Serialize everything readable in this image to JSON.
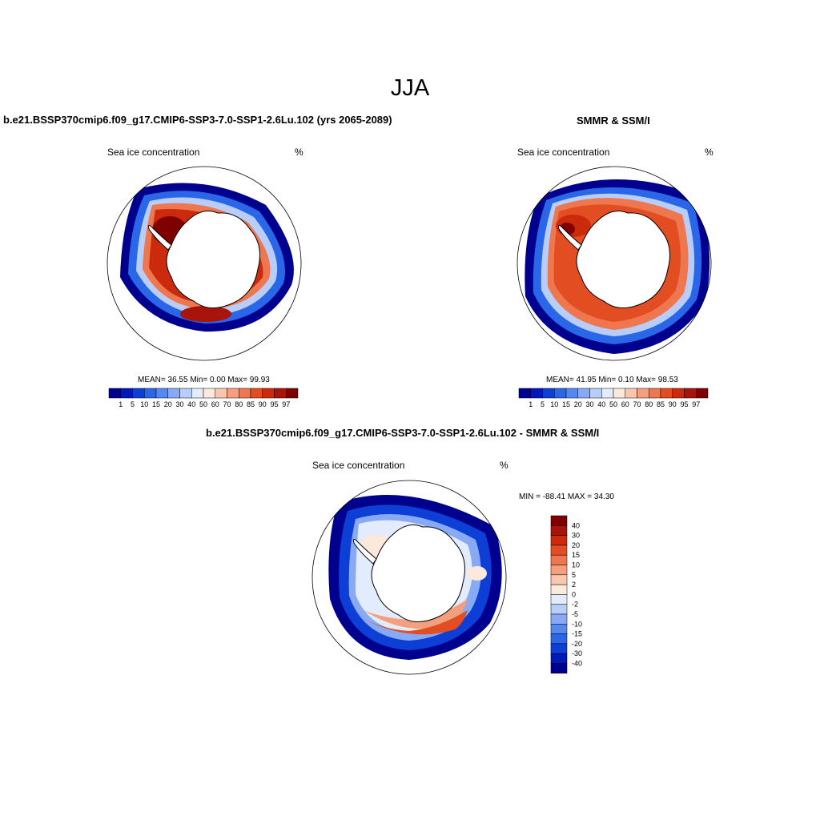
{
  "figure": {
    "title": "JJA"
  },
  "panels": [
    {
      "id": "model",
      "title": "b.e21.BSSP370cmip6.f09_g17.CMIP6-SSP3-7.0-SSP1-2.6Lu.102 (yrs 2065-2089)",
      "left_label": "Sea ice concentration",
      "right_label": "%",
      "stats": "MEAN=  36.55  Min=   0.00  Max=  99.93"
    },
    {
      "id": "obs",
      "title": "SMMR & SSM/I",
      "left_label": "Sea ice concentration",
      "right_label": "%",
      "stats": "MEAN=  41.95  Min=   0.10  Max=  98.53"
    },
    {
      "id": "diff",
      "title": "b.e21.BSSP370cmip6.f09_g17.CMIP6-SSP3-7.0-SSP1-2.6Lu.102 - SMMR & SSM/I",
      "left_label": "Sea ice concentration",
      "right_label": "%",
      "stats": "MIN = -88.41 MAX =  34.30"
    }
  ],
  "colorbars": {
    "concentration": {
      "labels": [
        "1",
        "5",
        "10",
        "15",
        "20",
        "30",
        "40",
        "50",
        "60",
        "70",
        "80",
        "85",
        "90",
        "95",
        "97"
      ],
      "colors": [
        "#00008f",
        "#0019b8",
        "#0d3fd6",
        "#2a66e8",
        "#5588f0",
        "#88aaf4",
        "#b8cdf8",
        "#e2ecfc",
        "#fde8dc",
        "#f9c7ad",
        "#f49f7d",
        "#ee774f",
        "#e24d22",
        "#cc2a0c",
        "#a8140a",
        "#7f0000"
      ]
    },
    "difference": {
      "labels": [
        "40",
        "30",
        "20",
        "15",
        "10",
        "5",
        "2",
        "0",
        "-2",
        "-5",
        "-10",
        "-15",
        "-20",
        "-30",
        "-40"
      ],
      "colors": [
        "#7f0000",
        "#a8140a",
        "#cc2a0c",
        "#e24d22",
        "#ee774f",
        "#f49f7d",
        "#f9c7ad",
        "#fde8dc",
        "#e2ecfc",
        "#b8cdf8",
        "#88aaf4",
        "#5588f0",
        "#2a66e8",
        "#0d3fd6",
        "#0019b8",
        "#00008f"
      ]
    }
  }
}
